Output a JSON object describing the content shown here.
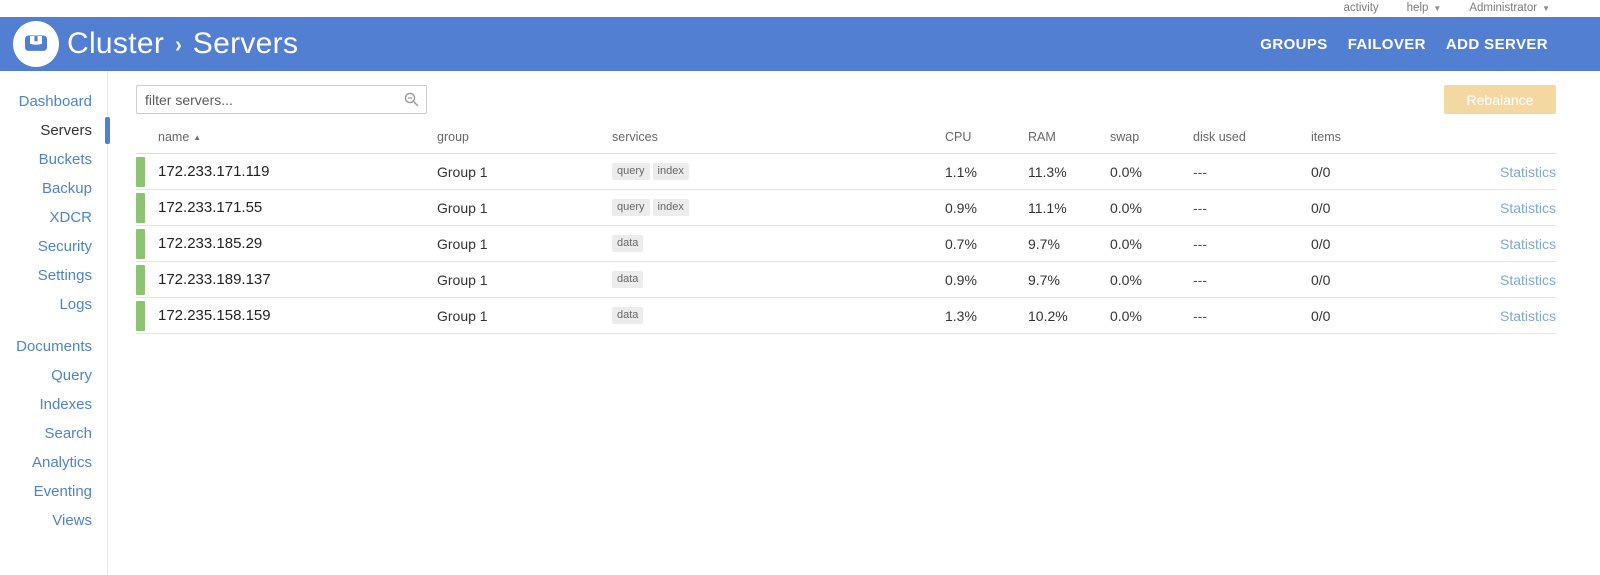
{
  "topbar": {
    "activity": "activity",
    "help": "help",
    "user": "Administrator"
  },
  "header": {
    "breadcrumb_root": "Cluster",
    "breadcrumb_current": "Servers",
    "actions": [
      {
        "label": "GROUPS"
      },
      {
        "label": "FAILOVER"
      },
      {
        "label": "ADD SERVER"
      }
    ]
  },
  "sidebar": {
    "groups": [
      {
        "items": [
          {
            "label": "Dashboard"
          },
          {
            "label": "Servers",
            "active": true
          },
          {
            "label": "Buckets"
          },
          {
            "label": "Backup"
          },
          {
            "label": "XDCR"
          },
          {
            "label": "Security"
          },
          {
            "label": "Settings"
          },
          {
            "label": "Logs"
          }
        ]
      },
      {
        "items": [
          {
            "label": "Documents"
          },
          {
            "label": "Query"
          },
          {
            "label": "Indexes"
          },
          {
            "label": "Search"
          },
          {
            "label": "Analytics"
          },
          {
            "label": "Eventing"
          },
          {
            "label": "Views"
          }
        ]
      }
    ]
  },
  "toolbar": {
    "filter_placeholder": "filter servers...",
    "rebalance_label": "Rebalance"
  },
  "table": {
    "columns": [
      "name",
      "group",
      "services",
      "CPU",
      "RAM",
      "swap",
      "disk used",
      "items",
      ""
    ],
    "sort": {
      "column": "name",
      "direction": "asc",
      "arrow": "▲"
    },
    "rows": [
      {
        "name": "172.233.171.119",
        "group": "Group 1",
        "services": [
          "query",
          "index"
        ],
        "cpu": "1.1%",
        "ram": "11.3%",
        "swap": "0.0%",
        "disk_used": "---",
        "items": "0/0",
        "action": "Statistics"
      },
      {
        "name": "172.233.171.55",
        "group": "Group 1",
        "services": [
          "query",
          "index"
        ],
        "cpu": "0.9%",
        "ram": "11.1%",
        "swap": "0.0%",
        "disk_used": "---",
        "items": "0/0",
        "action": "Statistics"
      },
      {
        "name": "172.233.185.29",
        "group": "Group 1",
        "services": [
          "data"
        ],
        "cpu": "0.7%",
        "ram": "9.7%",
        "swap": "0.0%",
        "disk_used": "---",
        "items": "0/0",
        "action": "Statistics"
      },
      {
        "name": "172.233.189.137",
        "group": "Group 1",
        "services": [
          "data"
        ],
        "cpu": "0.9%",
        "ram": "9.7%",
        "swap": "0.0%",
        "disk_used": "---",
        "items": "0/0",
        "action": "Statistics"
      },
      {
        "name": "172.235.158.159",
        "group": "Group 1",
        "services": [
          "data"
        ],
        "cpu": "1.3%",
        "ram": "10.2%",
        "swap": "0.0%",
        "disk_used": "---",
        "items": "0/0",
        "action": "Statistics"
      }
    ]
  },
  "colors": {
    "header_blue": "#537fd2",
    "sidebar_link_blue": "#4e83cb",
    "healthy_green": "#8bc573",
    "rebalance_disabled_bg": "#f3d8a2",
    "statistics_link": "#7ea8d8"
  }
}
